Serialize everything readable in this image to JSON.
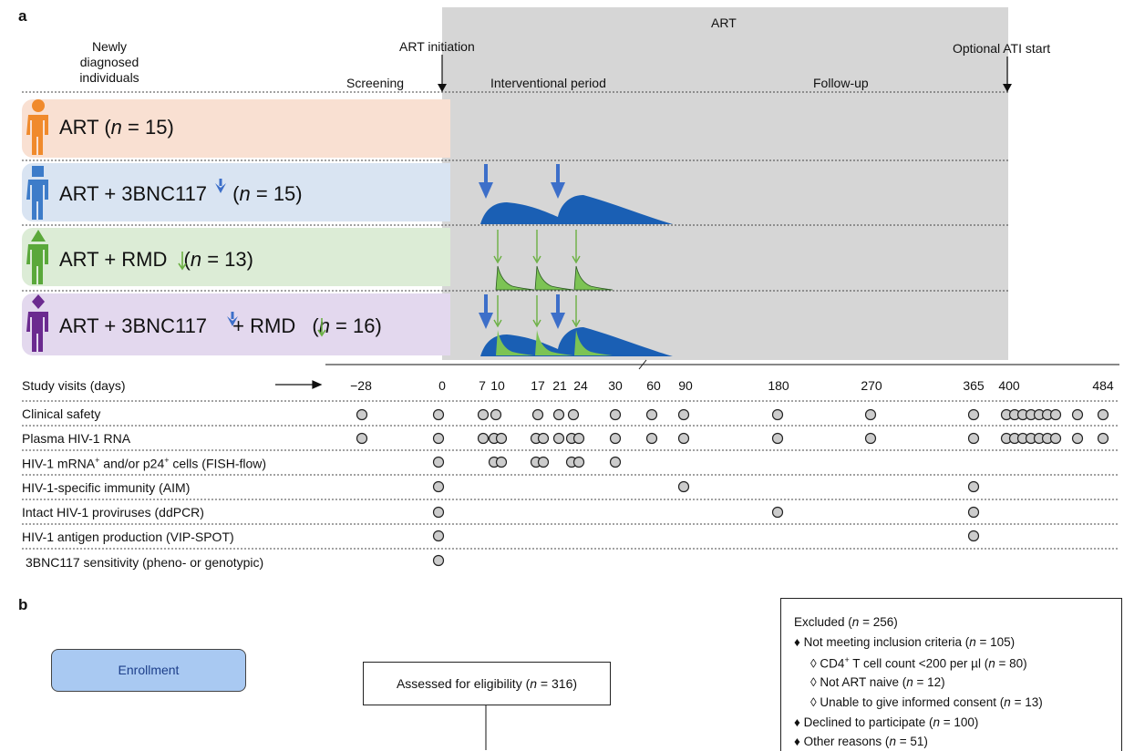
{
  "panel_a": {
    "letter": "a",
    "art_label": "ART",
    "newly_diagnosed": [
      "Newly",
      "diagnosed",
      "individuals"
    ],
    "art_initiation": "ART initiation",
    "optional_ati": "Optional ATI start",
    "screening": "Screening",
    "interventional": "Interventional period",
    "followup": "Follow-up",
    "arms": [
      {
        "pre": "ART (",
        "n": "n",
        "post": " = 15)",
        "color": "#f9e0d2",
        "figure_color": "#f08a2c",
        "head": "circle"
      },
      {
        "pre": "ART + 3BNC117",
        "post2": " (",
        "n": "n",
        "post": " = 15)",
        "color": "#d9e4f2",
        "figure_color": "#3d7cc9",
        "head": "square"
      },
      {
        "pre": "ART + RMD",
        "post2": "  (",
        "n": "n",
        "post": " = 13)",
        "color": "#dcecd6",
        "figure_color": "#5aa83a",
        "head": "triangle"
      },
      {
        "pre": "ART + 3BNC117",
        "mid": " + RMD",
        "post2": " (",
        "n": "n",
        "post": " = 16)",
        "color": "#e3d8ee",
        "figure_color": "#6b2a8f",
        "head": "diamond"
      }
    ],
    "study_visits_label": "Study visits (days)",
    "visit_days": [
      "−28",
      "0",
      "7",
      "10",
      "17",
      "21",
      "24",
      "30",
      "60",
      "90",
      "180",
      "270",
      "365",
      "400",
      "484"
    ],
    "assay_rows": [
      "Clinical safety",
      "Plasma HIV-1 RNA",
      "HIV-1 mRNA",
      "and/or p24",
      "cells (FISH-flow)",
      "HIV-1-specific immunity (AIM)",
      "Intact HIV-1 proviruses (ddPCR)",
      "HIV-1 antigen production (VIP-SPOT)",
      "3BNC117 sensitivity (pheno- or genotypic)"
    ],
    "sup_plus": "+"
  },
  "panel_b": {
    "letter": "b",
    "enrollment": "Enrollment",
    "assessed": "Assessed for eligibility (",
    "assessed_n": "n",
    "assessed_post": " = 316)",
    "excluded_lines": [
      {
        "indent": 0,
        "bullet": "",
        "text": "Excluded (",
        "n": "n",
        "post": " = 256)"
      },
      {
        "indent": 0,
        "bullet": "♦ ",
        "text": "Not meeting inclusion criteria (",
        "n": "n",
        "post": " = 105)"
      },
      {
        "indent": 1,
        "bullet": "◊ ",
        "text": "CD4",
        "sup": "+",
        "text2": " T cell count <200 per µl (",
        "n": "n",
        "post": " = 80)"
      },
      {
        "indent": 1,
        "bullet": "◊ ",
        "text": "Not ART naive (",
        "n": "n",
        "post": " = 12)"
      },
      {
        "indent": 1,
        "bullet": "◊ ",
        "text": "Unable to give informed consent (",
        "n": "n",
        "post": " = 13)"
      },
      {
        "indent": 0,
        "bullet": "♦ ",
        "text": "Declined to participate (",
        "n": "n",
        "post": " = 100)"
      },
      {
        "indent": 0,
        "bullet": "♦ ",
        "text": "Other reasons (",
        "n": "n",
        "post": " = 51)"
      }
    ]
  },
  "colors": {
    "art_grey": "#d6d6d6",
    "bnc_blue": "#1a5fb4",
    "rmd_green": "#7cc354",
    "arrow_blue": "#3d6fc9",
    "arrow_green": "#6bb043"
  }
}
